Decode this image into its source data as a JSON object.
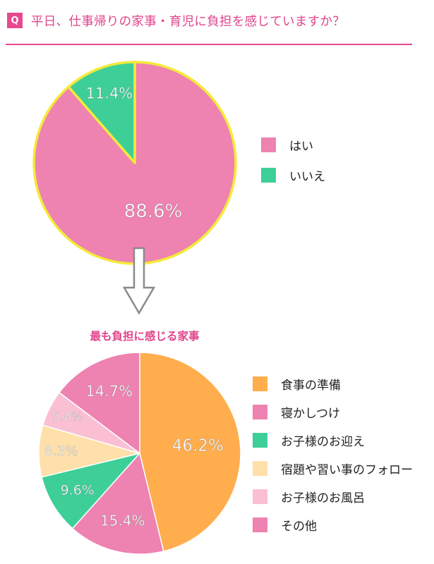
{
  "question": {
    "badge": "Q",
    "text": "平日、仕事帰りの家事・育児に負担を感じていますか？",
    "accent_color": "#e8488f"
  },
  "arrow_icon": "down-arrow-icon",
  "chart_data": [
    {
      "type": "pie",
      "title": "",
      "categories": [
        "はい",
        "いいえ"
      ],
      "values": [
        88.6,
        11.4
      ],
      "labels": [
        "88.6%",
        "11.4%"
      ],
      "colors": [
        "#ee82b1",
        "#3ecf98"
      ],
      "border_color": "#f4ea3a",
      "legend_position": "right"
    },
    {
      "type": "pie",
      "title": "最も負担に感じる家事",
      "categories": [
        "食事の準備",
        "寝かしつけ",
        "お子様のお迎え",
        "宿題や習い事のフォロー",
        "お子様のお風呂",
        "その他"
      ],
      "values": [
        46.2,
        15.4,
        9.6,
        8.3,
        5.8,
        14.7
      ],
      "labels": [
        "46.2%",
        "15.4%",
        "9.6%",
        "8.3%",
        "5.8%",
        "14.7%"
      ],
      "colors": [
        "#ffad4d",
        "#ee82b1",
        "#3ecf98",
        "#ffe0aa",
        "#fbbfd3",
        "#ee82b1"
      ],
      "border_color": "#ffffff",
      "legend_position": "right"
    }
  ]
}
